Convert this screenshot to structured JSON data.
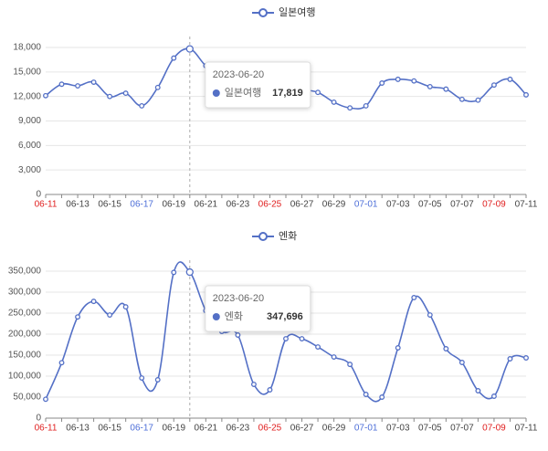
{
  "chart_data": [
    {
      "type": "line",
      "categories": [
        "06-11",
        null,
        "06-13",
        null,
        "06-15",
        null,
        "06-17",
        null,
        "06-19",
        null,
        "06-21",
        null,
        "06-23",
        null,
        "06-25",
        null,
        "06-27",
        null,
        "06-29",
        null,
        "07-01",
        null,
        "07-03",
        null,
        "07-05",
        null,
        "07-07",
        null,
        "07-09",
        null,
        "07-11"
      ],
      "category_colors": [
        "#e02020",
        null,
        "#444",
        null,
        "#444",
        null,
        "#4e6fd8",
        null,
        "#444",
        null,
        "#444",
        null,
        "#444",
        null,
        "#e02020",
        null,
        "#444",
        null,
        "#444",
        null,
        "#4e6fd8",
        null,
        "#444",
        null,
        "#444",
        null,
        "#444",
        null,
        "#e02020",
        null,
        "#444"
      ],
      "series": [
        {
          "name": "일본여행",
          "color": "#5470c6",
          "values": [
            12100,
            13500,
            13300,
            13750,
            12000,
            12400,
            10850,
            13100,
            16700,
            17819,
            15760,
            14500,
            13800,
            13300,
            13000,
            12800,
            12800,
            12500,
            11300,
            10600,
            10850,
            13640,
            14100,
            13900,
            13200,
            12900,
            11650,
            11550,
            13400,
            14100,
            12200
          ]
        }
      ],
      "ylim": [
        0,
        18000
      ],
      "yticks": [
        0,
        {
          "value": 3000,
          "label": "3,000"
        },
        {
          "value": 6000,
          "label": "6,000"
        },
        {
          "value": 9000,
          "label": "9,000"
        },
        {
          "value": 12000,
          "label": "12,000"
        },
        {
          "value": 15000,
          "label": "15,000"
        },
        {
          "value": 18000,
          "label": "18,000"
        }
      ],
      "grid": true,
      "tooltip": {
        "title": "2023-06-20",
        "value_label": "17,819"
      }
    },
    {
      "type": "line",
      "categories": [
        "06-11",
        null,
        "06-13",
        null,
        "06-15",
        null,
        "06-17",
        null,
        "06-19",
        null,
        "06-21",
        null,
        "06-23",
        null,
        "06-25",
        null,
        "06-27",
        null,
        "06-29",
        null,
        "07-01",
        null,
        "07-03",
        null,
        "07-05",
        null,
        "07-07",
        null,
        "07-09",
        null,
        "07-11"
      ],
      "category_colors": [
        "#e02020",
        null,
        "#444",
        null,
        "#444",
        null,
        "#4e6fd8",
        null,
        "#444",
        null,
        "#444",
        null,
        "#444",
        null,
        "#e02020",
        null,
        "#444",
        null,
        "#444",
        null,
        "#4e6fd8",
        null,
        "#444",
        null,
        "#444",
        null,
        "#444",
        null,
        "#e02020",
        null,
        "#444"
      ],
      "series": [
        {
          "name": "엔화",
          "color": "#5470c6",
          "values": [
            45000,
            132000,
            241000,
            278000,
            245600,
            265000,
            95600,
            91300,
            347000,
            347696,
            256000,
            206500,
            197800,
            80400,
            67400,
            189100,
            189000,
            169500,
            145600,
            128000,
            56500,
            50000,
            167400,
            287000,
            245600,
            165200,
            132600,
            65200,
            52200,
            141300,
            143500
          ]
        }
      ],
      "ylim": [
        0,
        350000
      ],
      "yticks": [
        0,
        {
          "value": 50000,
          "label": "50,000"
        },
        {
          "value": 100000,
          "label": "100,000"
        },
        {
          "value": 150000,
          "label": "150,000"
        },
        {
          "value": 200000,
          "label": "200,000"
        },
        {
          "value": 250000,
          "label": "250,000"
        },
        {
          "value": 300000,
          "label": "300,000"
        },
        {
          "value": 350000,
          "label": "350,000"
        }
      ],
      "grid": true,
      "tooltip": {
        "title": "2023-06-20",
        "value_label": "347,696"
      }
    }
  ]
}
